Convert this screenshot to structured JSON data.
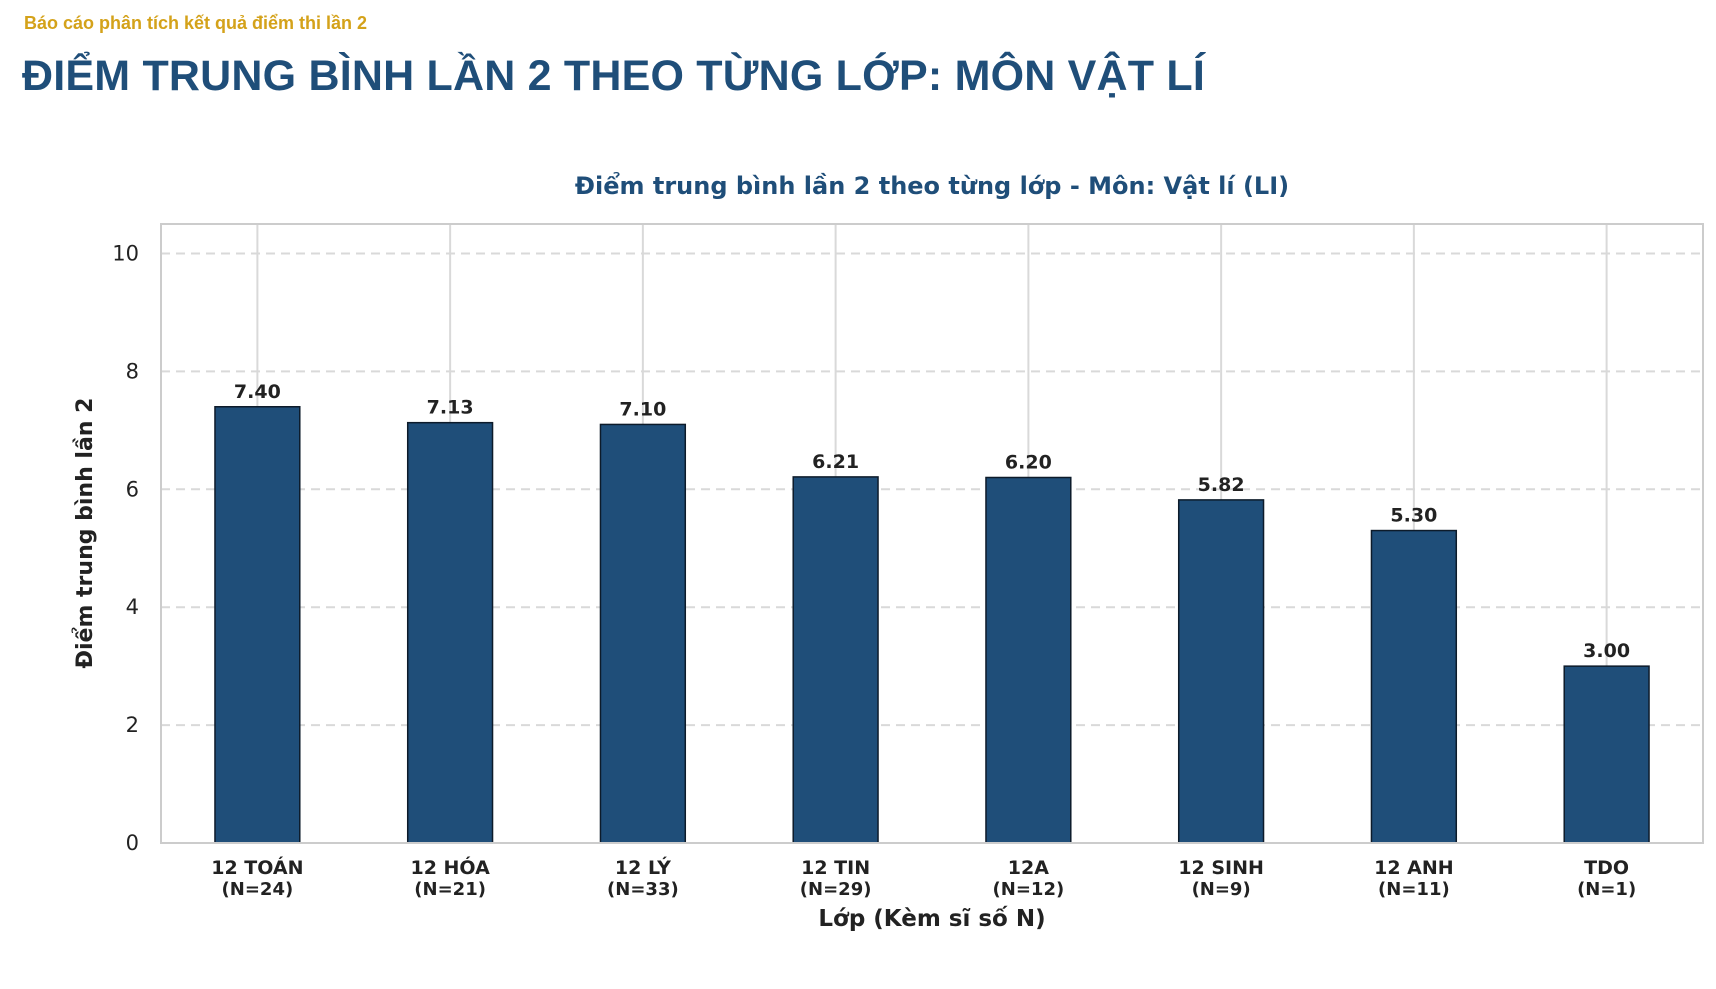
{
  "header": {
    "report_label": "Báo cáo phân tích kết quả điểm thi lần 2",
    "title": "ĐIỂM TRUNG BÌNH LẦN 2 THEO TỪNG LỚP: MÔN VẬT LÍ"
  },
  "chart_data": {
    "type": "bar",
    "title": "Điểm trung bình lần 2 theo từng lớp - Môn: Vật lí (LI)",
    "xlabel": "Lớp (Kèm sĩ số N)",
    "ylabel": "Điểm trung bình lần 2",
    "ylim": [
      0,
      10.5
    ],
    "yticks": [
      0,
      2,
      4,
      6,
      8,
      10
    ],
    "categories": [
      "12 TOÁN",
      "12 HÓA",
      "12 LÝ",
      "12 TIN",
      "12A",
      "12 SINH",
      "12 ANH",
      "TDO"
    ],
    "counts": [
      "(N=24)",
      "(N=21)",
      "(N=33)",
      "(N=29)",
      "(N=12)",
      "(N=9)",
      "(N=11)",
      "(N=1)"
    ],
    "values": [
      7.4,
      7.13,
      7.1,
      6.21,
      6.2,
      5.82,
      5.3,
      3.0
    ],
    "value_labels": [
      "7.40",
      "7.13",
      "7.10",
      "6.21",
      "6.20",
      "5.82",
      "5.30",
      "3.00"
    ],
    "grid": true,
    "colors": {
      "bar": "#1f4e79",
      "bar_edge": "#0d1b2a",
      "title": "#1f4e79",
      "grid": "#d9d9d9"
    }
  }
}
